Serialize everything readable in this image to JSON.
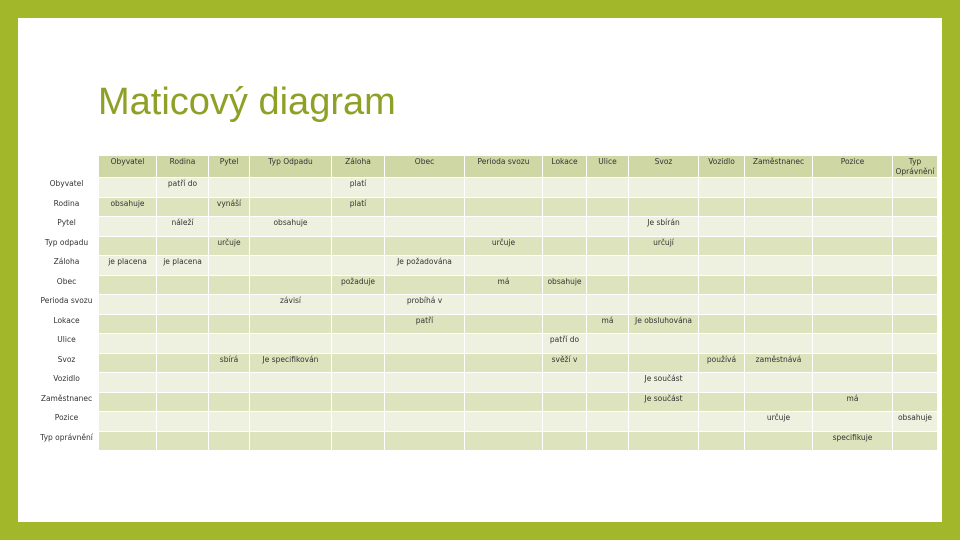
{
  "title": "Maticový diagram",
  "columns": [
    "Obyvatel",
    "Rodina",
    "Pytel",
    "Typ Odpadu",
    "Záloha",
    "Obec",
    "Perioda svozu",
    "Lokace",
    "Ulice",
    "Svoz",
    "Vozidlo",
    "Zaměstnanec",
    "Pozice",
    "Typ Oprávnění"
  ],
  "rows": [
    {
      "label": "Obyvatel",
      "cells": [
        "",
        "patří do",
        "",
        "",
        "platí",
        "",
        "",
        "",
        "",
        "",
        "",
        "",
        "",
        ""
      ]
    },
    {
      "label": "Rodina",
      "cells": [
        "obsahuje",
        "",
        "vynáší",
        "",
        "platí",
        "",
        "",
        "",
        "",
        "",
        "",
        "",
        "",
        ""
      ]
    },
    {
      "label": "Pytel",
      "cells": [
        "",
        "náleží",
        "",
        "obsahuje",
        "",
        "",
        "",
        "",
        "",
        "Je sbírán",
        "",
        "",
        "",
        ""
      ]
    },
    {
      "label": "Typ odpadu",
      "cells": [
        "",
        "",
        "určuje",
        "",
        "",
        "",
        "určuje",
        "",
        "",
        "určují",
        "",
        "",
        "",
        ""
      ]
    },
    {
      "label": "Záloha",
      "cells": [
        "je placena",
        "je placena",
        "",
        "",
        "",
        "Je požadována",
        "",
        "",
        "",
        "",
        "",
        "",
        "",
        ""
      ]
    },
    {
      "label": "Obec",
      "cells": [
        "",
        "",
        "",
        "",
        "požaduje",
        "",
        "má",
        "obsahuje",
        "",
        "",
        "",
        "",
        "",
        ""
      ]
    },
    {
      "label": "Perioda svozu",
      "cells": [
        "",
        "",
        "",
        "závisí",
        "",
        "probíhá v",
        "",
        "",
        "",
        "",
        "",
        "",
        "",
        ""
      ]
    },
    {
      "label": "Lokace",
      "cells": [
        "",
        "",
        "",
        "",
        "",
        "patří",
        "",
        "",
        "má",
        "Je obsluhována",
        "",
        "",
        "",
        ""
      ]
    },
    {
      "label": "Ulice",
      "cells": [
        "",
        "",
        "",
        "",
        "",
        "",
        "",
        "patří do",
        "",
        "",
        "",
        "",
        "",
        ""
      ]
    },
    {
      "label": "Svoz",
      "cells": [
        "",
        "",
        "sbírá",
        "Je specifikován",
        "",
        "",
        "",
        "svěží v",
        "",
        "",
        "používá",
        "zaměstnává",
        "",
        ""
      ]
    },
    {
      "label": "Vozidlo",
      "cells": [
        "",
        "",
        "",
        "",
        "",
        "",
        "",
        "",
        "",
        "Je součást",
        "",
        "",
        "",
        ""
      ]
    },
    {
      "label": "Zaměstnanec",
      "cells": [
        "",
        "",
        "",
        "",
        "",
        "",
        "",
        "",
        "",
        "Je součást",
        "",
        "",
        "má",
        ""
      ]
    },
    {
      "label": "Pozice",
      "cells": [
        "",
        "",
        "",
        "",
        "",
        "",
        "",
        "",
        "",
        "",
        "",
        "určuje",
        "",
        "obsahuje"
      ]
    },
    {
      "label": "Typ oprávnění",
      "cells": [
        "",
        "",
        "",
        "",
        "",
        "",
        "",
        "",
        "",
        "",
        "",
        "",
        "specifikuje",
        ""
      ]
    }
  ]
}
